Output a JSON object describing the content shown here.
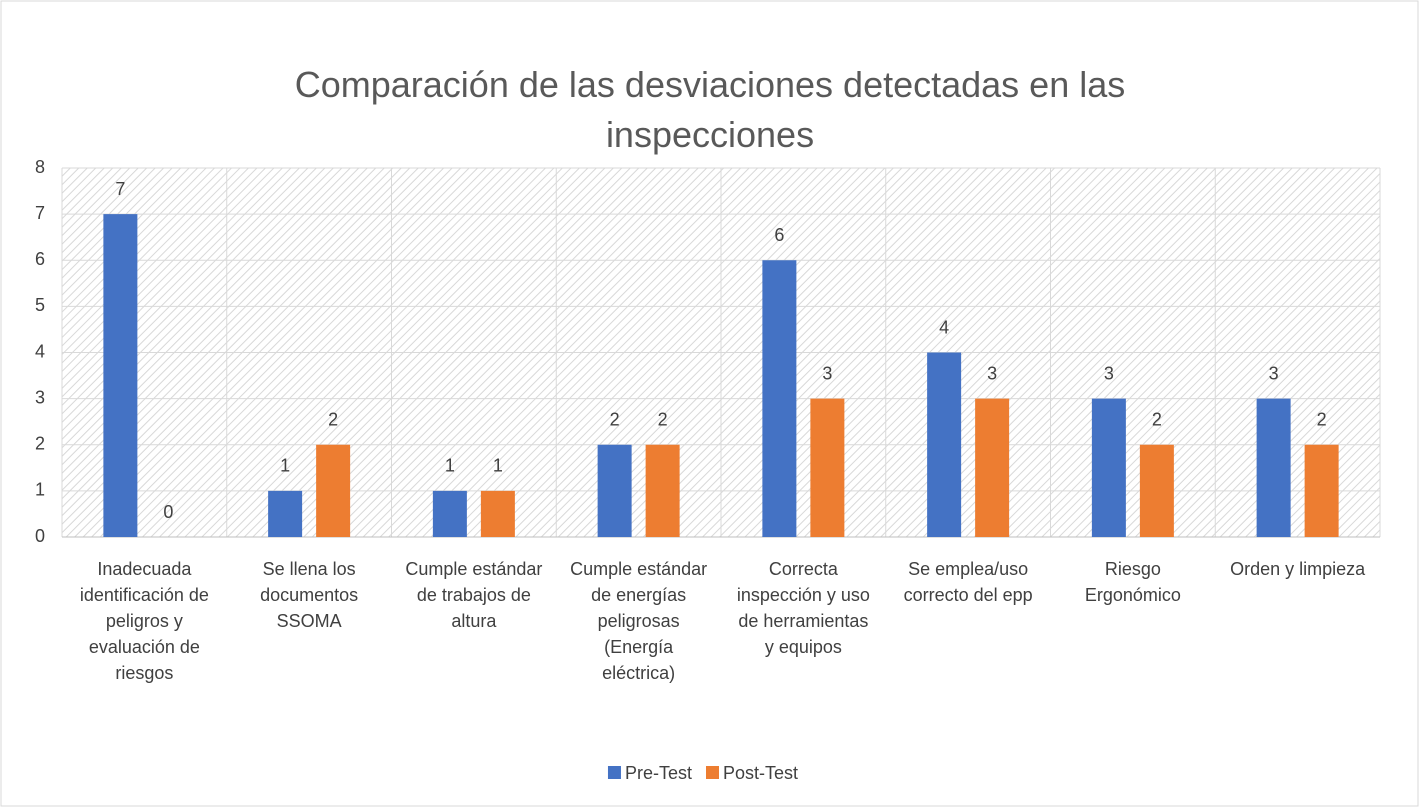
{
  "chart_data": {
    "type": "bar",
    "title": "Comparación de las desviaciones detectadas en las inspecciones",
    "categories": [
      "Inadecuada identificación de peligros y evaluación de riesgos",
      "Se llena los documentos SSOMA",
      "Cumple estándar de trabajos de altura",
      "Cumple estándar de energías peligrosas (Energía eléctrica)",
      "Correcta inspección y uso de herramientas y equipos",
      "Se emplea/uso correcto del epp",
      "Riesgo Ergonómico",
      "Orden y limpieza"
    ],
    "series": [
      {
        "name": "Pre-Test",
        "color": "#4472c4",
        "values": [
          7,
          1,
          1,
          2,
          6,
          4,
          3,
          3
        ]
      },
      {
        "name": "Post-Test",
        "color": "#ed7d31",
        "values": [
          0,
          2,
          1,
          2,
          3,
          3,
          2,
          2
        ]
      }
    ],
    "ylim": [
      0,
      8
    ],
    "yticks": [
      0,
      1,
      2,
      3,
      4,
      5,
      6,
      7,
      8
    ],
    "grid": true,
    "legend": "bottom"
  }
}
